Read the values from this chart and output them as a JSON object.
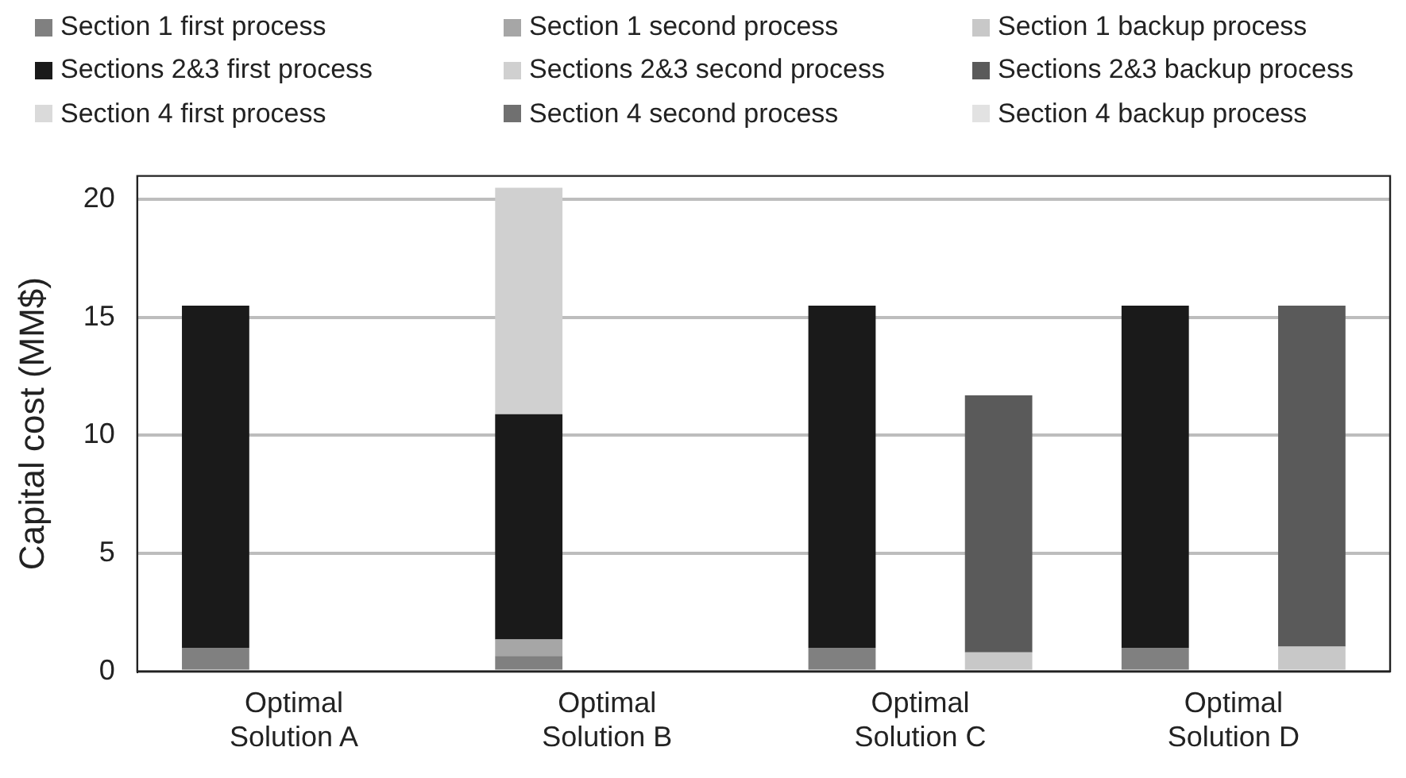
{
  "chart_data": {
    "type": "bar",
    "stacked": true,
    "ylabel": "Capital cost (MM$)",
    "categories": [
      "Optimal Solution A",
      null,
      "Optimal Solution B",
      null,
      "Optimal Solution C",
      null,
      "Optimal Solution D",
      null
    ],
    "series": [
      {
        "name": "Section 1 first process",
        "color": "#808080",
        "values": [
          1.0,
          null,
          0.65,
          null,
          1.0,
          null,
          1.0,
          null
        ]
      },
      {
        "name": "Section 1 second process",
        "color": "#a6a6a6",
        "values": [
          null,
          null,
          0.7,
          null,
          null,
          null,
          null,
          null
        ]
      },
      {
        "name": "Section 1 backup process",
        "color": "#c8c8c8",
        "values": [
          null,
          null,
          null,
          null,
          null,
          0.8,
          null,
          1.05
        ]
      },
      {
        "name": "Sections 2&3 first process",
        "color": "#1a1a1a",
        "values": [
          14.5,
          null,
          9.55,
          null,
          14.5,
          null,
          14.5,
          null
        ]
      },
      {
        "name": "Sections 2&3 second process",
        "color": "#d0d0d0",
        "values": [
          null,
          null,
          9.6,
          null,
          null,
          null,
          null,
          null
        ]
      },
      {
        "name": "Sections 2&3 backup process",
        "color": "#5a5a5a",
        "values": [
          null,
          null,
          null,
          null,
          null,
          10.9,
          null,
          14.45
        ]
      },
      {
        "name": "Section 4 first process",
        "color": "#dadada",
        "values": [
          null,
          null,
          null,
          null,
          null,
          null,
          null,
          null
        ]
      },
      {
        "name": "Section 4 second process",
        "color": "#707070",
        "values": [
          null,
          null,
          null,
          null,
          null,
          null,
          null,
          null
        ]
      },
      {
        "name": "Section 4 backup process",
        "color": "#e2e2e2",
        "values": [
          null,
          null,
          null,
          null,
          null,
          null,
          null,
          null
        ]
      }
    ],
    "ylim": [
      0,
      21
    ],
    "yticks": [
      0,
      5,
      10,
      15,
      20
    ],
    "grid": "y",
    "legend": "top"
  }
}
